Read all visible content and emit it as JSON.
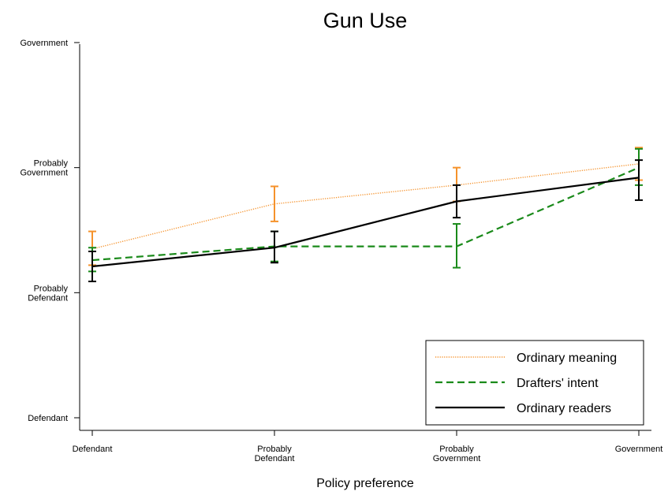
{
  "chart_data": {
    "type": "line",
    "title": "Gun Use",
    "xlabel": "Policy preference",
    "ylabel": "",
    "x_categories": [
      [
        "Defendant"
      ],
      [
        "Probably",
        "Defendant"
      ],
      [
        "Probably",
        "Government"
      ],
      [
        "Government"
      ]
    ],
    "y_ticks": [
      {
        "value": 1,
        "lines": [
          "Defendant"
        ]
      },
      {
        "value": 2,
        "lines": [
          "Probably",
          "Defendant"
        ]
      },
      {
        "value": 3,
        "lines": [
          "Probably",
          "Government"
        ]
      },
      {
        "value": 4,
        "lines": [
          "Government"
        ]
      }
    ],
    "ylim": [
      1,
      4
    ],
    "grid": false,
    "legend_position": "bottom-right",
    "series": [
      {
        "name": "Ordinary meaning",
        "color": "#f5922b",
        "style": "dotted",
        "values": [
          2.35,
          2.71,
          2.86,
          3.03
        ],
        "err_low": [
          2.22,
          2.57,
          2.73,
          2.9
        ],
        "err_high": [
          2.49,
          2.85,
          3.0,
          3.16
        ]
      },
      {
        "name": "Drafters' intent",
        "color": "#1a8a1a",
        "style": "dashed",
        "values": [
          2.26,
          2.37,
          2.37,
          3.0
        ],
        "err_low": [
          2.17,
          2.25,
          2.2,
          2.86
        ],
        "err_high": [
          2.36,
          2.49,
          2.55,
          3.15
        ]
      },
      {
        "name": "Ordinary readers",
        "color": "#000000",
        "style": "solid",
        "values": [
          2.21,
          2.36,
          2.73,
          2.92
        ],
        "err_low": [
          2.09,
          2.24,
          2.6,
          2.74
        ],
        "err_high": [
          2.33,
          2.49,
          2.86,
          3.06
        ]
      }
    ]
  }
}
